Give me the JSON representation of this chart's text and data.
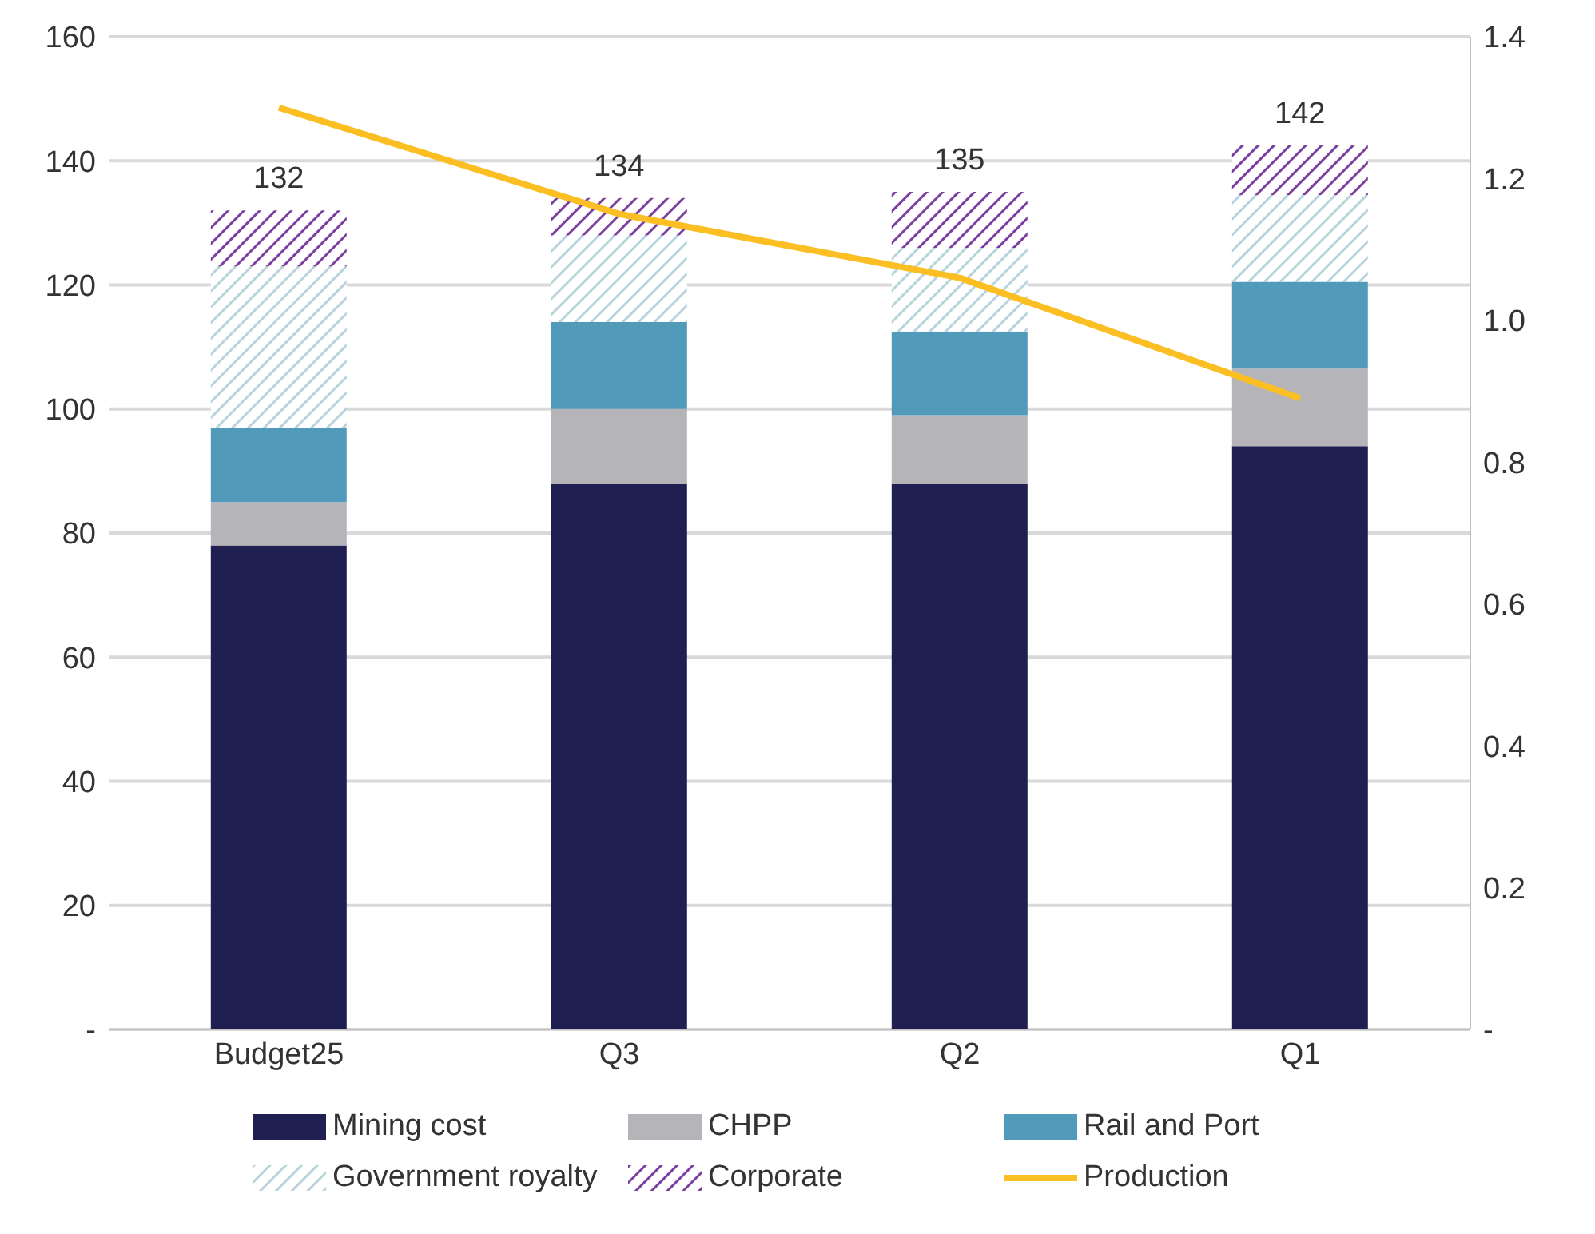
{
  "chart_data": {
    "type": "bar",
    "stacked": true,
    "categories": [
      "Budget25",
      "Q3",
      "Q2",
      "Q1"
    ],
    "series": [
      {
        "name": "Mining cost",
        "color": "#201f52",
        "values": [
          78,
          88,
          88,
          94
        ]
      },
      {
        "name": "CHPP",
        "color": "#b5b4b8",
        "values": [
          7,
          12,
          11,
          12.5
        ]
      },
      {
        "name": "Rail and Port",
        "color": "#519ab9",
        "values": [
          12,
          14,
          13.5,
          14
        ]
      },
      {
        "name": "Government royalty",
        "color": "#b8d3dc",
        "values": [
          26,
          14,
          13.5,
          14
        ]
      },
      {
        "name": "Corporate",
        "color": "#7b3fa0",
        "values": [
          9,
          6,
          9,
          8
        ]
      },
      {
        "name": "Production",
        "type": "line",
        "axis": "y2",
        "color": "#fbbf24",
        "values": [
          1.3,
          1.15,
          1.06,
          0.89
        ]
      }
    ],
    "totals": [
      "132",
      "134",
      "135",
      "142"
    ],
    "ylim": [
      0,
      160
    ],
    "yticks": [
      {
        "value": 0,
        "label": "-"
      },
      20,
      40,
      60,
      80,
      100,
      120,
      140,
      160
    ],
    "y2lim": [
      0,
      1.4
    ],
    "y2ticks": [
      {
        "value": 0,
        "label": "-"
      },
      {
        "value": 0.2,
        "label": "0.2"
      },
      {
        "value": 0.4,
        "label": "0.4"
      },
      {
        "value": 0.6,
        "label": "0.6"
      },
      {
        "value": 0.8,
        "label": "0.8"
      },
      {
        "value": 1,
        "label": "1.0"
      },
      {
        "value": 1.2,
        "label": "1.2"
      },
      {
        "value": 1.4,
        "label": "1.4"
      }
    ],
    "grid": "y",
    "legend": "bottom",
    "marker": "none"
  }
}
